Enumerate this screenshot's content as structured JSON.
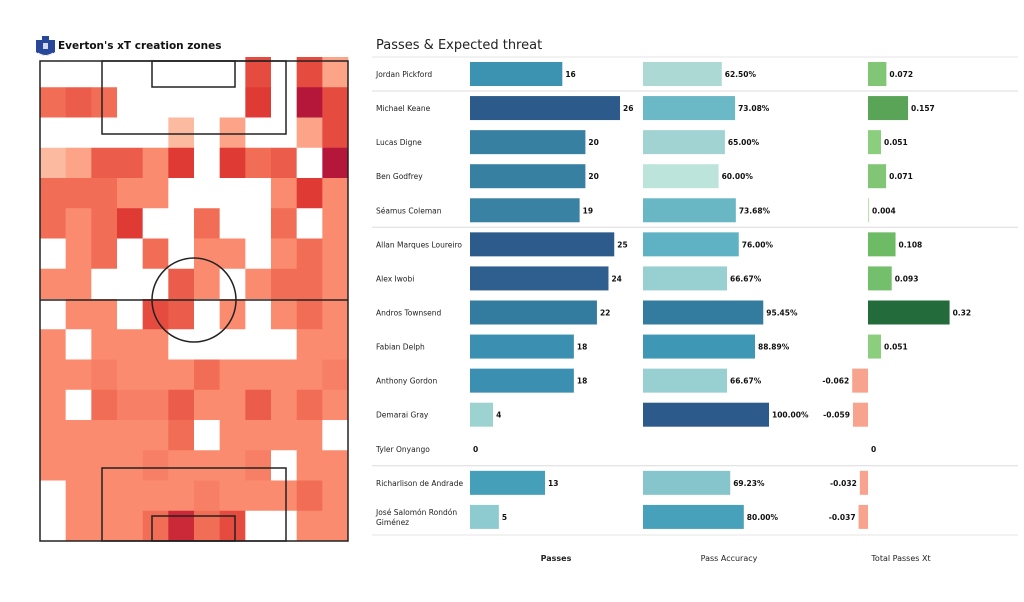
{
  "left_panel": {
    "title": "Everton's xT creation zones",
    "logo": "everton-crest",
    "heatmap_colors": [
      "#ffffff",
      "#fcbba1",
      "#fb8b6f",
      "#f26d55",
      "#e03a35",
      "#b5173a"
    ]
  },
  "right_panel": {
    "title": "Passes & Expected threat",
    "column_headers": [
      "Passes",
      "Pass Accuracy",
      "Total Passes Xt"
    ]
  },
  "chart_data": [
    {
      "type": "heatmap",
      "title": "Everton's xT creation zones",
      "description_of_scale": "relative intensity 0 (none) to 5.5 (highest)",
      "grid_columns": 12,
      "grid_rows": 16,
      "values": [
        [
          0,
          0,
          0,
          0,
          0,
          0,
          0,
          0,
          4,
          0,
          4,
          2
        ],
        [
          3,
          3.5,
          3,
          0,
          0,
          0,
          0,
          0,
          4.5,
          0,
          5.5,
          4
        ],
        [
          0,
          0,
          0,
          0,
          0,
          1.5,
          0,
          2,
          0,
          0,
          2,
          4
        ],
        [
          1.5,
          2,
          3.5,
          3.5,
          2.5,
          4.5,
          0,
          4.5,
          3,
          3.5,
          0,
          5.5
        ],
        [
          3,
          3,
          3,
          2.5,
          2.5,
          0,
          0,
          0,
          0,
          2.5,
          4.5,
          2.5
        ],
        [
          3,
          2.5,
          3,
          4.5,
          0,
          0,
          3,
          0,
          0,
          3,
          0,
          2.5
        ],
        [
          0,
          2.5,
          3,
          0,
          3,
          0,
          2.5,
          2.5,
          0,
          2.5,
          3,
          2.5
        ],
        [
          2.5,
          2.5,
          0,
          0,
          0,
          3.5,
          2.5,
          0,
          2.5,
          3,
          3,
          2.5
        ],
        [
          0,
          2.5,
          2.5,
          0,
          4,
          3.5,
          0,
          2.5,
          0,
          2.5,
          3,
          2.5
        ],
        [
          2.5,
          0,
          2.5,
          2.5,
          2.5,
          0,
          0,
          0,
          0,
          0,
          2.5,
          2.5
        ],
        [
          2.5,
          2.5,
          2.7,
          2.5,
          2.5,
          2.5,
          3,
          2.5,
          2.5,
          2.5,
          2.5,
          2.7
        ],
        [
          2.5,
          0,
          3,
          2.7,
          2.7,
          3.5,
          2.5,
          2.5,
          3.5,
          2.5,
          3,
          2.5
        ],
        [
          2.5,
          2.5,
          2.5,
          2.5,
          2.5,
          3,
          0,
          2.5,
          2.5,
          2.5,
          2.5,
          0
        ],
        [
          2.5,
          2.5,
          2.5,
          2.5,
          2.7,
          2.5,
          2.5,
          2.5,
          2.7,
          0,
          2.5,
          2.5
        ],
        [
          0,
          2.5,
          2.5,
          2.5,
          2.5,
          2.5,
          2.7,
          2.5,
          2.5,
          2.5,
          3,
          2.5
        ],
        [
          0,
          2.5,
          2.5,
          2.5,
          3,
          5,
          3,
          4,
          0,
          0,
          2.5,
          2.5
        ]
      ]
    },
    {
      "type": "bar",
      "title": "Passes & Expected threat",
      "players": [
        "Jordan Pickford",
        "Michael Keane",
        "Lucas Digne",
        "Ben Godfrey",
        "Séamus Coleman",
        "Allan Marques Loureiro",
        "Alex Iwobi",
        "Andros Townsend",
        "Fabian Delph",
        "Anthony Gordon",
        "Demarai Gray",
        "Tyler Onyango",
        "Richarlison de Andrade",
        "José Salomón Rondón Giménez"
      ],
      "group_breaks_after": [
        0,
        4,
        11
      ],
      "series": [
        {
          "name": "Passes",
          "values": [
            16,
            26,
            20,
            20,
            19,
            25,
            24,
            22,
            18,
            18,
            4,
            0,
            13,
            5
          ],
          "labels": [
            "16",
            "26",
            "20",
            "20",
            "19",
            "25",
            "24",
            "22",
            "18",
            "18",
            "4",
            "0",
            "13",
            "5"
          ],
          "colors": [
            "#3b93b1",
            "#2c5a8a",
            "#3880a2",
            "#3880a2",
            "#3a82a3",
            "#2d5b8b",
            "#2f5f8e",
            "#337ca0",
            "#3b8fb0",
            "#3b8fb0",
            "#9cd3d1",
            "#9cd3d1",
            "#459fb8",
            "#8ecbd0"
          ]
        },
        {
          "name": "Pass Accuracy",
          "values": [
            62.5,
            73.08,
            65,
            60,
            73.68,
            76,
            66.67,
            95.45,
            88.89,
            66.67,
            100,
            null,
            69.23,
            80
          ],
          "labels": [
            "62.50%",
            "73.08%",
            "65.00%",
            "60.00%",
            "73.68%",
            "76.00%",
            "66.67%",
            "95.45%",
            "88.89%",
            "66.67%",
            "100.00%",
            "",
            "69.23%",
            "80.00%"
          ],
          "colors": [
            "#acd9d3",
            "#6bb8c6",
            "#a0d3d2",
            "#bde4da",
            "#69b7c5",
            "#5fb2c3",
            "#98cfd0",
            "#337ca0",
            "#3e97b5",
            "#98cfd0",
            "#2c5a8a",
            "#ffffff",
            "#85c5cb",
            "#47a1ba"
          ]
        },
        {
          "name": "Total Passes Xt",
          "values": [
            0.072,
            0.157,
            0.051,
            0.071,
            0.004,
            0.108,
            0.093,
            0.32,
            0.051,
            -0.062,
            -0.059,
            0,
            -0.032,
            -0.037
          ],
          "labels": [
            "0.072",
            "0.157",
            "0.051",
            "0.071",
            "0.004",
            "0.108",
            "0.093",
            "0.32",
            "0.051",
            "-0.062",
            "-0.059",
            "0",
            "-0.032",
            "-0.037"
          ],
          "colors": [
            "#80c674",
            "#5aa457",
            "#8bcf7e",
            "#80c674",
            "#b7e2a8",
            "#6ebb66",
            "#73bf6b",
            "#236b3a",
            "#8bcf7e",
            "#f8a38d",
            "#f8a38d",
            "#ffffff",
            "#f8a38d",
            "#f8a38d"
          ]
        }
      ]
    }
  ]
}
